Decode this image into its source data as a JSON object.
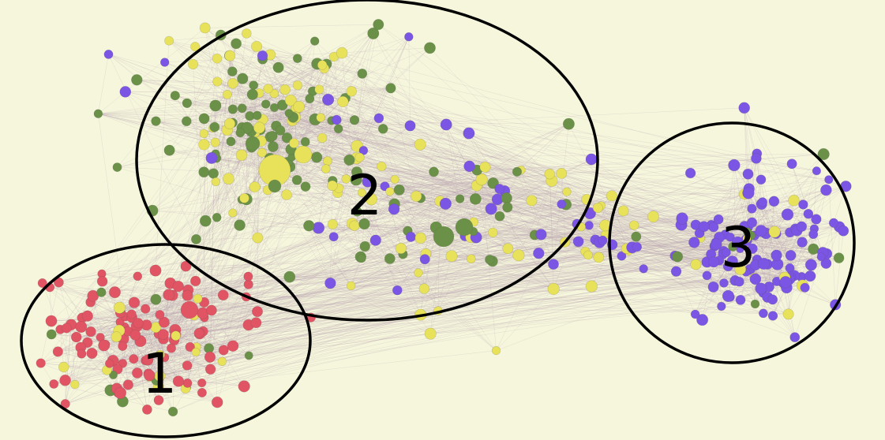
{
  "colors": {
    "background": "#f5f6dc",
    "edge": "#b49aae",
    "ring": "#000000",
    "red": "#e05463",
    "yellow": "#e8e25a",
    "green": "#6b9148",
    "purple": "#7b55e3"
  },
  "clusters": [
    {
      "id": "cluster-1",
      "label": "1",
      "dominant_color": "red"
    },
    {
      "id": "cluster-2",
      "label": "2",
      "dominant_color": "green"
    },
    {
      "id": "cluster-3",
      "label": "3",
      "dominant_color": "purple"
    }
  ]
}
